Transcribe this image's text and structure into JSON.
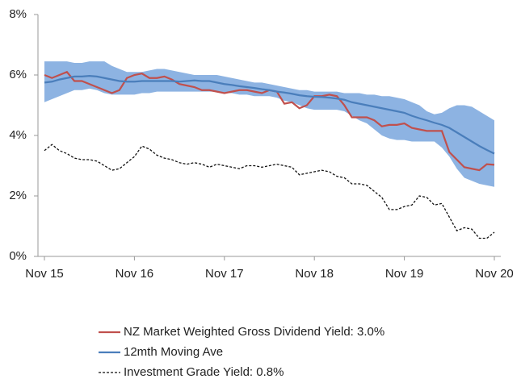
{
  "chart_data": {
    "type": "line",
    "categories": [
      "Nov 15",
      null,
      null,
      null,
      null,
      null,
      null,
      null,
      null,
      null,
      null,
      null,
      "Nov 16",
      null,
      null,
      null,
      null,
      null,
      null,
      null,
      null,
      null,
      null,
      null,
      "Nov 17",
      null,
      null,
      null,
      null,
      null,
      null,
      null,
      null,
      null,
      null,
      null,
      "Nov 18",
      null,
      null,
      null,
      null,
      null,
      null,
      null,
      null,
      null,
      null,
      null,
      "Nov 19",
      null,
      null,
      null,
      null,
      null,
      null,
      null,
      null,
      null,
      null,
      null,
      "Nov 20"
    ],
    "ylim": [
      0,
      8
    ],
    "yticks": [
      {
        "value": 0,
        "label": "0%"
      },
      {
        "value": 2,
        "label": "2%"
      },
      {
        "value": 4,
        "label": "4%"
      },
      {
        "value": 6,
        "label": "6%"
      },
      {
        "value": 8,
        "label": "8%"
      }
    ],
    "band": {
      "color": "#8db3e2",
      "upper": [
        6.45,
        6.45,
        6.45,
        6.45,
        6.4,
        6.4,
        6.45,
        6.45,
        6.45,
        6.3,
        6.2,
        6.1,
        6.1,
        6.1,
        6.15,
        6.2,
        6.2,
        6.15,
        6.1,
        6.05,
        6.0,
        6.0,
        6.0,
        6.0,
        5.95,
        5.9,
        5.85,
        5.8,
        5.75,
        5.75,
        5.7,
        5.65,
        5.6,
        5.55,
        5.5,
        5.5,
        5.45,
        5.45,
        5.45,
        5.45,
        5.4,
        5.4,
        5.4,
        5.35,
        5.35,
        5.3,
        5.3,
        5.25,
        5.2,
        5.1,
        5.0,
        4.8,
        4.7,
        4.75,
        4.9,
        5.0,
        5.0,
        4.95,
        4.8,
        4.65,
        4.5
      ],
      "lower": [
        5.1,
        5.2,
        5.3,
        5.4,
        5.5,
        5.5,
        5.55,
        5.5,
        5.4,
        5.35,
        5.35,
        5.35,
        5.35,
        5.4,
        5.4,
        5.45,
        5.45,
        5.45,
        5.45,
        5.45,
        5.45,
        5.45,
        5.45,
        5.45,
        5.4,
        5.4,
        5.35,
        5.35,
        5.3,
        5.3,
        5.3,
        5.25,
        5.15,
        5.1,
        5.0,
        4.9,
        4.85,
        4.85,
        4.85,
        4.85,
        4.8,
        4.65,
        4.5,
        4.4,
        4.2,
        4.0,
        3.9,
        3.85,
        3.85,
        3.8,
        3.8,
        3.8,
        3.8,
        3.6,
        3.3,
        2.9,
        2.6,
        2.5,
        2.4,
        2.35,
        2.3
      ]
    },
    "series": [
      {
        "name": "NZ Market Weighted Gross Dividend Yield: 3.0%",
        "color": "#c0504d",
        "dash": false,
        "values": [
          6.0,
          5.9,
          6.0,
          6.1,
          5.8,
          5.8,
          5.7,
          5.6,
          5.5,
          5.4,
          5.5,
          5.9,
          6.0,
          6.05,
          5.9,
          5.9,
          5.95,
          5.85,
          5.7,
          5.65,
          5.6,
          5.5,
          5.5,
          5.45,
          5.4,
          5.45,
          5.5,
          5.5,
          5.45,
          5.4,
          5.5,
          5.45,
          5.05,
          5.1,
          4.9,
          5.0,
          5.3,
          5.3,
          5.35,
          5.3,
          5.0,
          4.6,
          4.6,
          4.6,
          4.5,
          4.3,
          4.35,
          4.35,
          4.4,
          4.25,
          4.2,
          4.15,
          4.15,
          4.15,
          3.45,
          3.2,
          2.95,
          2.9,
          2.85,
          3.05,
          3.03
        ]
      },
      {
        "name": "12mth Moving Ave",
        "color": "#4a7ebb",
        "dash": false,
        "values": [
          5.75,
          5.78,
          5.85,
          5.9,
          5.95,
          5.95,
          5.97,
          5.95,
          5.9,
          5.85,
          5.8,
          5.78,
          5.78,
          5.8,
          5.8,
          5.8,
          5.8,
          5.8,
          5.78,
          5.8,
          5.82,
          5.8,
          5.8,
          5.75,
          5.7,
          5.67,
          5.63,
          5.6,
          5.57,
          5.53,
          5.5,
          5.45,
          5.42,
          5.38,
          5.33,
          5.3,
          5.28,
          5.27,
          5.25,
          5.22,
          5.18,
          5.1,
          5.05,
          5.0,
          4.95,
          4.9,
          4.85,
          4.8,
          4.75,
          4.65,
          4.57,
          4.5,
          4.42,
          4.35,
          4.25,
          4.1,
          3.95,
          3.8,
          3.65,
          3.52,
          3.4
        ]
      },
      {
        "name": "Investment Grade Yield: 0.8%",
        "color": "#111111",
        "dash": true,
        "values": [
          3.5,
          3.7,
          3.5,
          3.4,
          3.25,
          3.2,
          3.2,
          3.15,
          3.0,
          2.85,
          2.9,
          3.1,
          3.3,
          3.65,
          3.55,
          3.35,
          3.25,
          3.2,
          3.1,
          3.05,
          3.1,
          3.05,
          2.95,
          3.05,
          3.0,
          2.95,
          2.9,
          3.0,
          3.0,
          2.95,
          3.0,
          3.05,
          3.0,
          2.95,
          2.7,
          2.75,
          2.8,
          2.85,
          2.8,
          2.65,
          2.6,
          2.4,
          2.4,
          2.35,
          2.15,
          1.95,
          1.55,
          1.55,
          1.65,
          1.7,
          2.0,
          1.95,
          1.7,
          1.75,
          1.3,
          0.85,
          0.95,
          0.9,
          0.6,
          0.6,
          0.8
        ]
      }
    ]
  }
}
